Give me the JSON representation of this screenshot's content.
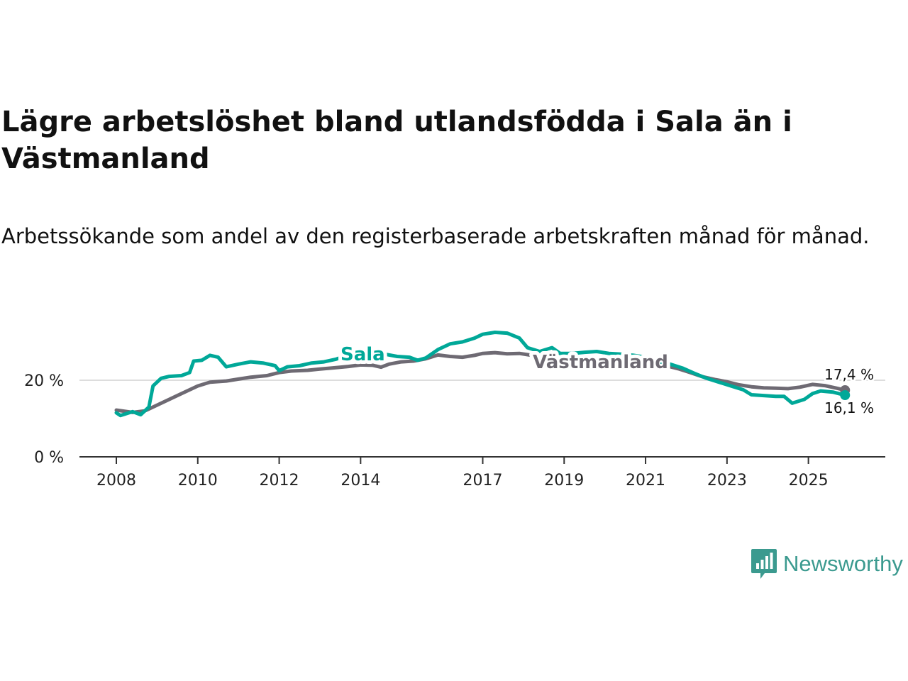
{
  "title": "Lägre arbetslöshet bland utlandsfödda i Sala än i Västmanland",
  "subtitle": "Arbetssökande som andel av den registerbaserade arbetskraften månad för månad.",
  "brand": {
    "name": "Newsworthy",
    "icon": "newsworthy-logo-icon",
    "color": "#3b9a8f"
  },
  "colors": {
    "sala": "#00a898",
    "vastmanland": "#6e6a73",
    "axis": "#333333",
    "grid": "#dddddd"
  },
  "chart_data": {
    "type": "line",
    "title": "Lägre arbetslöshet bland utlandsfödda i Sala än i Västmanland",
    "xlabel": "",
    "ylabel": "",
    "x_range": [
      2008,
      2026
    ],
    "ylim": [
      0,
      35
    ],
    "y_ticks": [
      {
        "value": 0,
        "label": "0 %"
      },
      {
        "value": 20,
        "label": "20 %"
      }
    ],
    "x_ticks": [
      {
        "value": 2008,
        "label": "2008"
      },
      {
        "value": 2010,
        "label": "2010"
      },
      {
        "value": 2012,
        "label": "2012"
      },
      {
        "value": 2014,
        "label": "2014"
      },
      {
        "value": 2017,
        "label": "2017"
      },
      {
        "value": 2019,
        "label": "2019"
      },
      {
        "value": 2021,
        "label": "2021"
      },
      {
        "value": 2023,
        "label": "2023"
      },
      {
        "value": 2025,
        "label": "2025"
      }
    ],
    "series": [
      {
        "name": "Västmanland",
        "label": "Västmanland",
        "end_label": "17,4 %",
        "points": [
          [
            2008.0,
            12.2
          ],
          [
            2008.4,
            11.6
          ],
          [
            2008.7,
            12.0
          ],
          [
            2009.0,
            13.5
          ],
          [
            2009.3,
            15.0
          ],
          [
            2009.6,
            16.5
          ],
          [
            2010.0,
            18.5
          ],
          [
            2010.3,
            19.5
          ],
          [
            2010.7,
            19.8
          ],
          [
            2011.0,
            20.3
          ],
          [
            2011.3,
            20.8
          ],
          [
            2011.7,
            21.2
          ],
          [
            2012.0,
            22.0
          ],
          [
            2012.3,
            22.4
          ],
          [
            2012.7,
            22.6
          ],
          [
            2013.0,
            22.9
          ],
          [
            2013.3,
            23.2
          ],
          [
            2013.7,
            23.6
          ],
          [
            2014.0,
            24.0
          ],
          [
            2014.3,
            23.9
          ],
          [
            2014.5,
            23.4
          ],
          [
            2014.7,
            24.2
          ],
          [
            2015.0,
            24.8
          ],
          [
            2015.3,
            25.0
          ],
          [
            2015.6,
            25.6
          ],
          [
            2015.9,
            26.6
          ],
          [
            2016.2,
            26.2
          ],
          [
            2016.5,
            26.0
          ],
          [
            2016.8,
            26.5
          ],
          [
            2017.0,
            27.0
          ],
          [
            2017.3,
            27.2
          ],
          [
            2017.6,
            26.9
          ],
          [
            2017.9,
            27.0
          ],
          [
            2018.2,
            26.5
          ],
          [
            2018.5,
            25.8
          ],
          [
            2018.8,
            25.5
          ],
          [
            2019.1,
            25.2
          ],
          [
            2019.4,
            25.0
          ],
          [
            2019.7,
            25.2
          ],
          [
            2020.0,
            25.4
          ],
          [
            2020.3,
            25.3
          ],
          [
            2020.6,
            25.0
          ],
          [
            2020.9,
            24.6
          ],
          [
            2021.2,
            24.3
          ],
          [
            2021.5,
            23.8
          ],
          [
            2021.8,
            23.0
          ],
          [
            2022.1,
            22.0
          ],
          [
            2022.4,
            20.9
          ],
          [
            2022.7,
            20.2
          ],
          [
            2023.0,
            19.6
          ],
          [
            2023.3,
            18.8
          ],
          [
            2023.6,
            18.3
          ],
          [
            2023.9,
            18.0
          ],
          [
            2024.2,
            17.9
          ],
          [
            2024.5,
            17.8
          ],
          [
            2024.8,
            18.2
          ],
          [
            2025.1,
            18.9
          ],
          [
            2025.4,
            18.6
          ],
          [
            2025.7,
            17.9
          ],
          [
            2025.9,
            17.4
          ]
        ]
      },
      {
        "name": "Sala",
        "label": "Sala",
        "end_label": "16,1 %",
        "points": [
          [
            2008.0,
            11.5
          ],
          [
            2008.1,
            10.8
          ],
          [
            2008.4,
            11.8
          ],
          [
            2008.6,
            11.0
          ],
          [
            2008.8,
            13.0
          ],
          [
            2008.9,
            18.5
          ],
          [
            2009.1,
            20.5
          ],
          [
            2009.3,
            21.0
          ],
          [
            2009.6,
            21.2
          ],
          [
            2009.8,
            22.0
          ],
          [
            2009.9,
            25.0
          ],
          [
            2010.1,
            25.2
          ],
          [
            2010.3,
            26.5
          ],
          [
            2010.5,
            26.0
          ],
          [
            2010.7,
            23.5
          ],
          [
            2011.0,
            24.2
          ],
          [
            2011.3,
            24.8
          ],
          [
            2011.6,
            24.5
          ],
          [
            2011.9,
            23.8
          ],
          [
            2012.0,
            22.5
          ],
          [
            2012.2,
            23.5
          ],
          [
            2012.5,
            23.8
          ],
          [
            2012.8,
            24.5
          ],
          [
            2013.1,
            24.8
          ],
          [
            2013.4,
            25.5
          ],
          [
            2013.7,
            26.6
          ],
          [
            2014.0,
            26.8
          ],
          [
            2014.3,
            26.5
          ],
          [
            2014.6,
            26.8
          ],
          [
            2014.9,
            26.2
          ],
          [
            2015.2,
            26.0
          ],
          [
            2015.4,
            25.2
          ],
          [
            2015.6,
            25.8
          ],
          [
            2015.9,
            28.0
          ],
          [
            2016.2,
            29.5
          ],
          [
            2016.5,
            30.0
          ],
          [
            2016.8,
            31.0
          ],
          [
            2017.0,
            32.0
          ],
          [
            2017.3,
            32.5
          ],
          [
            2017.6,
            32.3
          ],
          [
            2017.9,
            31.0
          ],
          [
            2018.1,
            28.5
          ],
          [
            2018.4,
            27.5
          ],
          [
            2018.7,
            28.5
          ],
          [
            2018.9,
            27.0
          ],
          [
            2019.2,
            27.0
          ],
          [
            2019.5,
            27.3
          ],
          [
            2019.8,
            27.5
          ],
          [
            2020.1,
            27.0
          ],
          [
            2020.4,
            26.8
          ],
          [
            2020.7,
            26.5
          ],
          [
            2021.0,
            26.0
          ],
          [
            2021.3,
            25.0
          ],
          [
            2021.6,
            24.2
          ],
          [
            2021.9,
            23.2
          ],
          [
            2022.2,
            21.8
          ],
          [
            2022.5,
            20.5
          ],
          [
            2022.8,
            19.5
          ],
          [
            2023.1,
            18.5
          ],
          [
            2023.4,
            17.5
          ],
          [
            2023.6,
            16.2
          ],
          [
            2023.9,
            16.0
          ],
          [
            2024.2,
            15.8
          ],
          [
            2024.4,
            15.8
          ],
          [
            2024.6,
            14.0
          ],
          [
            2024.9,
            15.0
          ],
          [
            2025.1,
            16.5
          ],
          [
            2025.3,
            17.2
          ],
          [
            2025.6,
            16.9
          ],
          [
            2025.9,
            16.1
          ]
        ]
      }
    ]
  }
}
